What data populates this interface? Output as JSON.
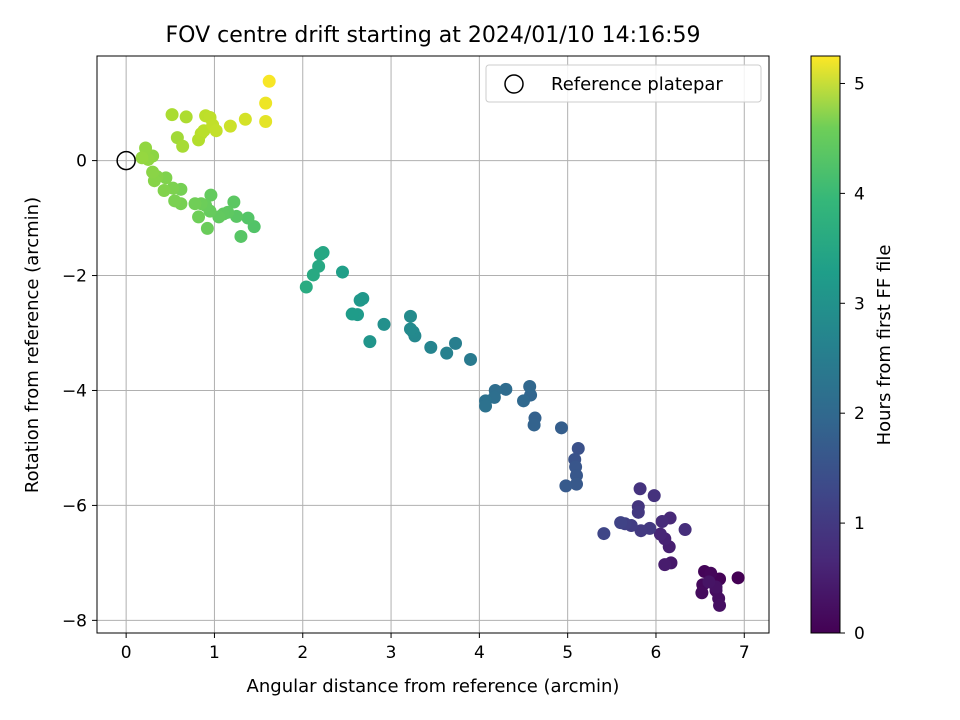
{
  "chart_data": {
    "type": "scatter",
    "title": "FOV centre drift starting at 2024/01/10 14:16:59",
    "xlabel": "Angular distance from reference (arcmin)",
    "ylabel": "Rotation from reference (arcmin)",
    "xlim": [
      -0.33,
      7.28
    ],
    "ylim": [
      -8.22,
      1.82
    ],
    "xticks": [
      0,
      1,
      2,
      3,
      4,
      5,
      6,
      7
    ],
    "xtick_labels": [
      "0",
      "1",
      "2",
      "3",
      "4",
      "5",
      "6",
      "7"
    ],
    "yticks": [
      -8,
      -6,
      -4,
      -2,
      0
    ],
    "ytick_labels": [
      "−8",
      "−6",
      "−4",
      "−2",
      "0"
    ],
    "grid": true,
    "legend": {
      "position": "top-right",
      "entries": [
        "Reference platepar"
      ]
    },
    "reference_point": {
      "label": "Reference platepar",
      "x": 0,
      "y": 0,
      "marker": "hollow-circle"
    },
    "colorbar": {
      "label": "Hours from first FF file",
      "colormap": "viridis",
      "range": [
        0,
        5.25
      ],
      "ticks": [
        0,
        1,
        2,
        3,
        4,
        5
      ],
      "tick_labels": [
        "0",
        "1",
        "2",
        "3",
        "4",
        "5"
      ]
    },
    "points": [
      {
        "x": 6.93,
        "y": -7.26,
        "h": 0.0
      },
      {
        "x": 6.72,
        "y": -7.28,
        "h": 0.03
      },
      {
        "x": 6.55,
        "y": -7.15,
        "h": 0.06
      },
      {
        "x": 6.62,
        "y": -7.18,
        "h": 0.09
      },
      {
        "x": 6.53,
        "y": -7.38,
        "h": 0.12
      },
      {
        "x": 6.52,
        "y": -7.52,
        "h": 0.15
      },
      {
        "x": 6.68,
        "y": -7.48,
        "h": 0.18
      },
      {
        "x": 6.71,
        "y": -7.62,
        "h": 0.2
      },
      {
        "x": 6.72,
        "y": -7.74,
        "h": 0.22
      },
      {
        "x": 6.68,
        "y": -7.42,
        "h": 0.25
      },
      {
        "x": 6.6,
        "y": -7.33,
        "h": 0.28
      },
      {
        "x": 6.17,
        "y": -7.0,
        "h": 0.35
      },
      {
        "x": 6.1,
        "y": -7.03,
        "h": 0.4
      },
      {
        "x": 6.15,
        "y": -6.72,
        "h": 0.45
      },
      {
        "x": 6.1,
        "y": -6.58,
        "h": 0.5
      },
      {
        "x": 6.05,
        "y": -6.5,
        "h": 0.55
      },
      {
        "x": 6.16,
        "y": -6.22,
        "h": 0.6
      },
      {
        "x": 6.07,
        "y": -6.28,
        "h": 0.65
      },
      {
        "x": 6.33,
        "y": -6.42,
        "h": 0.68
      },
      {
        "x": 5.98,
        "y": -5.83,
        "h": 0.75
      },
      {
        "x": 5.82,
        "y": -5.71,
        "h": 0.78
      },
      {
        "x": 5.8,
        "y": -6.02,
        "h": 0.8
      },
      {
        "x": 5.8,
        "y": -6.12,
        "h": 0.85
      },
      {
        "x": 5.93,
        "y": -6.4,
        "h": 0.88
      },
      {
        "x": 5.83,
        "y": -6.44,
        "h": 0.9
      },
      {
        "x": 5.72,
        "y": -6.35,
        "h": 0.95
      },
      {
        "x": 5.65,
        "y": -6.32,
        "h": 1.0
      },
      {
        "x": 5.6,
        "y": -6.3,
        "h": 1.05
      },
      {
        "x": 5.41,
        "y": -6.49,
        "h": 1.1
      },
      {
        "x": 5.12,
        "y": -5.01,
        "h": 1.3
      },
      {
        "x": 5.08,
        "y": -5.2,
        "h": 1.35
      },
      {
        "x": 5.09,
        "y": -5.33,
        "h": 1.4
      },
      {
        "x": 5.1,
        "y": -5.48,
        "h": 1.42
      },
      {
        "x": 5.1,
        "y": -5.63,
        "h": 1.45
      },
      {
        "x": 4.98,
        "y": -5.66,
        "h": 1.48
      },
      {
        "x": 4.93,
        "y": -4.65,
        "h": 1.55
      },
      {
        "x": 4.63,
        "y": -4.48,
        "h": 1.62
      },
      {
        "x": 4.62,
        "y": -4.6,
        "h": 1.65
      },
      {
        "x": 4.58,
        "y": -4.08,
        "h": 1.72
      },
      {
        "x": 4.57,
        "y": -3.93,
        "h": 1.75
      },
      {
        "x": 4.5,
        "y": -4.18,
        "h": 1.78
      },
      {
        "x": 4.3,
        "y": -3.98,
        "h": 1.85
      },
      {
        "x": 4.18,
        "y": -4.0,
        "h": 1.88
      },
      {
        "x": 4.17,
        "y": -4.12,
        "h": 1.9
      },
      {
        "x": 4.07,
        "y": -4.18,
        "h": 1.95
      },
      {
        "x": 4.07,
        "y": -4.27,
        "h": 1.98
      },
      {
        "x": 3.9,
        "y": -3.46,
        "h": 2.15
      },
      {
        "x": 3.73,
        "y": -3.18,
        "h": 2.25
      },
      {
        "x": 3.63,
        "y": -3.35,
        "h": 2.3
      },
      {
        "x": 3.45,
        "y": -3.25,
        "h": 2.38
      },
      {
        "x": 3.27,
        "y": -3.05,
        "h": 2.45
      },
      {
        "x": 3.25,
        "y": -2.98,
        "h": 2.48
      },
      {
        "x": 3.22,
        "y": -2.93,
        "h": 2.5
      },
      {
        "x": 3.22,
        "y": -2.71,
        "h": 2.52
      },
      {
        "x": 2.92,
        "y": -2.85,
        "h": 2.62
      },
      {
        "x": 2.76,
        "y": -3.15,
        "h": 2.72
      },
      {
        "x": 2.68,
        "y": -2.4,
        "h": 2.78
      },
      {
        "x": 2.65,
        "y": -2.43,
        "h": 2.8
      },
      {
        "x": 2.62,
        "y": -2.68,
        "h": 2.85
      },
      {
        "x": 2.56,
        "y": -2.67,
        "h": 2.88
      },
      {
        "x": 2.45,
        "y": -1.94,
        "h": 2.95
      },
      {
        "x": 2.23,
        "y": -1.6,
        "h": 3.1
      },
      {
        "x": 2.2,
        "y": -1.63,
        "h": 3.12
      },
      {
        "x": 2.18,
        "y": -1.84,
        "h": 3.15
      },
      {
        "x": 2.12,
        "y": -1.99,
        "h": 3.18
      },
      {
        "x": 2.04,
        "y": -2.2,
        "h": 3.22
      },
      {
        "x": 1.45,
        "y": -1.15,
        "h": 3.8
      },
      {
        "x": 1.38,
        "y": -1.0,
        "h": 3.82
      },
      {
        "x": 1.3,
        "y": -1.32,
        "h": 3.85
      },
      {
        "x": 1.25,
        "y": -0.97,
        "h": 3.88
      },
      {
        "x": 1.22,
        "y": -0.72,
        "h": 3.9
      },
      {
        "x": 1.15,
        "y": -0.9,
        "h": 3.92
      },
      {
        "x": 1.1,
        "y": -0.93,
        "h": 3.94
      },
      {
        "x": 1.05,
        "y": -0.98,
        "h": 3.96
      },
      {
        "x": 0.96,
        "y": -0.6,
        "h": 3.98
      },
      {
        "x": 0.95,
        "y": -0.88,
        "h": 4.0
      },
      {
        "x": 0.9,
        "y": -0.78,
        "h": 4.02
      },
      {
        "x": 0.92,
        "y": -1.18,
        "h": 4.04
      },
      {
        "x": 0.85,
        "y": -0.75,
        "h": 4.06
      },
      {
        "x": 0.82,
        "y": -0.98,
        "h": 4.08
      },
      {
        "x": 0.78,
        "y": -0.75,
        "h": 4.1
      },
      {
        "x": 0.62,
        "y": -0.5,
        "h": 4.14
      },
      {
        "x": 0.62,
        "y": -0.75,
        "h": 4.16
      },
      {
        "x": 0.55,
        "y": -0.7,
        "h": 4.18
      },
      {
        "x": 0.53,
        "y": -0.48,
        "h": 4.2
      },
      {
        "x": 0.45,
        "y": -0.3,
        "h": 4.22
      },
      {
        "x": 0.43,
        "y": -0.52,
        "h": 4.24
      },
      {
        "x": 0.35,
        "y": -0.28,
        "h": 4.27
      },
      {
        "x": 0.32,
        "y": -0.35,
        "h": 4.29
      },
      {
        "x": 0.3,
        "y": -0.2,
        "h": 4.31
      },
      {
        "x": 0.3,
        "y": 0.08,
        "h": 4.33
      },
      {
        "x": 0.25,
        "y": 0.02,
        "h": 4.36
      },
      {
        "x": 0.22,
        "y": 0.22,
        "h": 4.38
      },
      {
        "x": 0.18,
        "y": 0.05,
        "h": 4.4
      },
      {
        "x": 0.58,
        "y": 0.4,
        "h": 4.5
      },
      {
        "x": 0.64,
        "y": 0.25,
        "h": 4.55
      },
      {
        "x": 0.52,
        "y": 0.8,
        "h": 4.58
      },
      {
        "x": 0.68,
        "y": 0.76,
        "h": 4.6
      },
      {
        "x": 0.82,
        "y": 0.36,
        "h": 4.65
      },
      {
        "x": 0.85,
        "y": 0.47,
        "h": 4.68
      },
      {
        "x": 0.88,
        "y": 0.52,
        "h": 4.7
      },
      {
        "x": 0.9,
        "y": 0.78,
        "h": 4.72
      },
      {
        "x": 0.95,
        "y": 0.75,
        "h": 4.74
      },
      {
        "x": 0.98,
        "y": 0.62,
        "h": 4.76
      },
      {
        "x": 1.02,
        "y": 0.52,
        "h": 4.78
      },
      {
        "x": 1.18,
        "y": 0.6,
        "h": 4.85
      },
      {
        "x": 1.35,
        "y": 0.72,
        "h": 4.92
      },
      {
        "x": 1.58,
        "y": 0.68,
        "h": 5.05
      },
      {
        "x": 1.58,
        "y": 1.0,
        "h": 5.12
      },
      {
        "x": 1.62,
        "y": 1.38,
        "h": 5.2
      }
    ]
  }
}
